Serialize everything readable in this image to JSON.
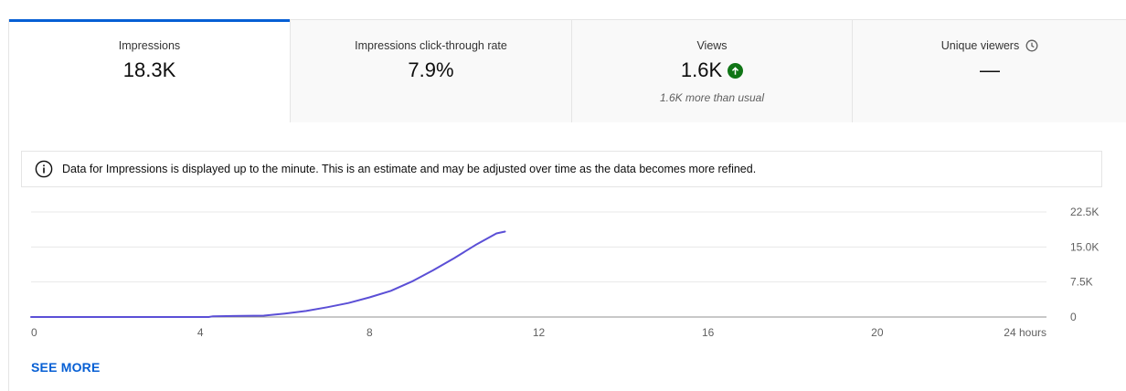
{
  "tabs": [
    {
      "label": "Impressions",
      "value": "18.3K",
      "active": true
    },
    {
      "label": "Impressions click-through rate",
      "value": "7.9%"
    },
    {
      "label": "Views",
      "value": "1.6K",
      "trend_icon": "arrow-up-circle-icon",
      "subtext": "1.6K more than usual"
    },
    {
      "label": "Unique viewers",
      "value": "—",
      "label_icon": "clock-icon"
    }
  ],
  "info_banner": {
    "icon": "info-icon",
    "text": "Data for Impressions is displayed up to the minute. This is an estimate and may be adjusted over time as the data becomes more refined."
  },
  "chart_data": {
    "type": "line",
    "x_tick_labels": [
      "0",
      "4",
      "8",
      "12",
      "16",
      "20",
      "24 hours"
    ],
    "y_tick_labels": [
      "22.5K",
      "15.0K",
      "7.5K",
      "0"
    ],
    "xlim": [
      0,
      24
    ],
    "ylim": [
      0,
      22500
    ],
    "grid": true,
    "color": "#5b4fd6",
    "series": [
      {
        "points": [
          [
            0,
            0
          ],
          [
            4.2,
            0
          ],
          [
            4.3,
            150
          ],
          [
            5.5,
            300
          ],
          [
            6.0,
            750
          ],
          [
            6.5,
            1300
          ],
          [
            7.0,
            2100
          ],
          [
            7.5,
            3000
          ],
          [
            8.0,
            4200
          ],
          [
            8.5,
            5600
          ],
          [
            9.0,
            7600
          ],
          [
            9.5,
            10000
          ],
          [
            10.0,
            12600
          ],
          [
            10.5,
            15400
          ],
          [
            11.0,
            17900
          ],
          [
            11.2,
            18300
          ]
        ]
      }
    ]
  },
  "see_more_label": "SEE MORE",
  "colors": {
    "accent": "#065fd4",
    "positive": "#107516",
    "line": "#5b4fd6"
  }
}
